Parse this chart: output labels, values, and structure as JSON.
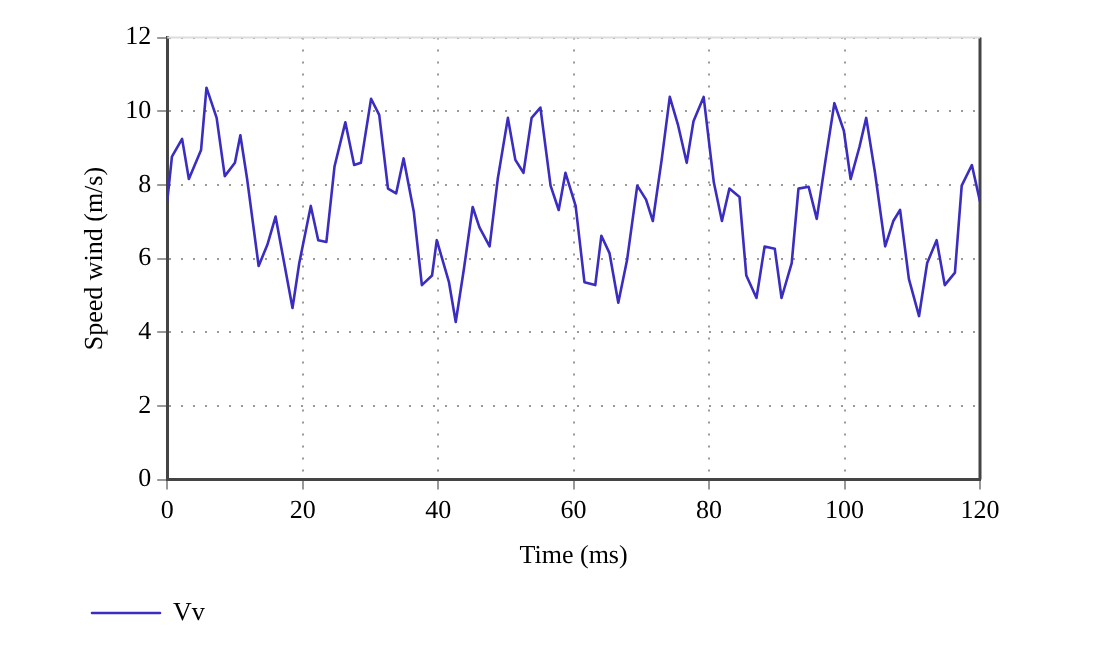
{
  "chart_data": {
    "type": "line",
    "xlabel": "Time (ms)",
    "ylabel": "Speed wind (m/s)",
    "xlim": [
      0,
      120
    ],
    "xticks": [
      0,
      20,
      40,
      60,
      80,
      100,
      120
    ],
    "ylim": [
      0,
      12
    ],
    "yticks": [
      0,
      2,
      4,
      6,
      8,
      10,
      12
    ],
    "grid": true,
    "legend": "bottom left",
    "marker": "none",
    "line_style": "solid",
    "series": [
      {
        "name": "Vv",
        "color": "#3a2dc0",
        "x": [
          0,
          0.7,
          2.2,
          3.2,
          5.0,
          5.8,
          7.3,
          8.5,
          10.0,
          10.8,
          11.8,
          13.5,
          14.8,
          16.0,
          18.5,
          19.5,
          21.2,
          22.3,
          23.5,
          24.7,
          26.3,
          27.6,
          28.6,
          30.1,
          31.3,
          32.6,
          33.8,
          34.9,
          36.4,
          37.6,
          39.1,
          39.8,
          41.6,
          42.6,
          43.8,
          45.1,
          46.1,
          47.6,
          48.8,
          50.3,
          51.4,
          52.6,
          53.8,
          55.1,
          56.6,
          57.8,
          58.8,
          60.3,
          61.6,
          63.2,
          64.1,
          65.3,
          66.6,
          67.9,
          69.4,
          70.7,
          71.7,
          73.0,
          74.2,
          75.4,
          76.7,
          77.7,
          79.2,
          80.7,
          81.9,
          83.0,
          84.5,
          85.5,
          87.0,
          88.2,
          89.7,
          90.7,
          92.2,
          93.2,
          94.7,
          95.9,
          97.2,
          98.5,
          99.9,
          100.9,
          102.2,
          103.2,
          104.5,
          106.0,
          107.2,
          108.2,
          109.5,
          111.0,
          112.2,
          113.6,
          114.8,
          116.3,
          117.3,
          118.8,
          120
        ],
        "values": [
          7.55,
          8.77,
          9.25,
          8.16,
          8.95,
          10.64,
          9.82,
          8.24,
          8.6,
          9.35,
          8.16,
          5.8,
          6.38,
          7.14,
          4.66,
          5.88,
          7.43,
          6.5,
          6.45,
          8.5,
          9.7,
          8.54,
          8.6,
          10.34,
          9.9,
          7.9,
          7.77,
          8.72,
          7.28,
          5.28,
          5.54,
          6.5,
          5.36,
          4.28,
          5.71,
          7.4,
          6.85,
          6.33,
          8.16,
          9.82,
          8.68,
          8.33,
          9.82,
          10.1,
          7.98,
          7.32,
          8.33,
          7.43,
          5.36,
          5.28,
          6.62,
          6.15,
          4.8,
          5.97,
          7.98,
          7.6,
          7.02,
          8.68,
          10.39,
          9.64,
          8.6,
          9.73,
          10.39,
          8.07,
          7.02,
          7.9,
          7.67,
          5.54,
          4.93,
          6.33,
          6.27,
          4.93,
          5.88,
          7.9,
          7.95,
          7.08,
          8.68,
          10.22,
          9.47,
          8.16,
          9.03,
          9.82,
          8.33,
          6.33,
          7.02,
          7.32,
          5.45,
          4.44,
          5.88,
          6.5,
          5.28,
          5.62,
          7.98,
          8.54,
          7.55
        ]
      }
    ]
  }
}
